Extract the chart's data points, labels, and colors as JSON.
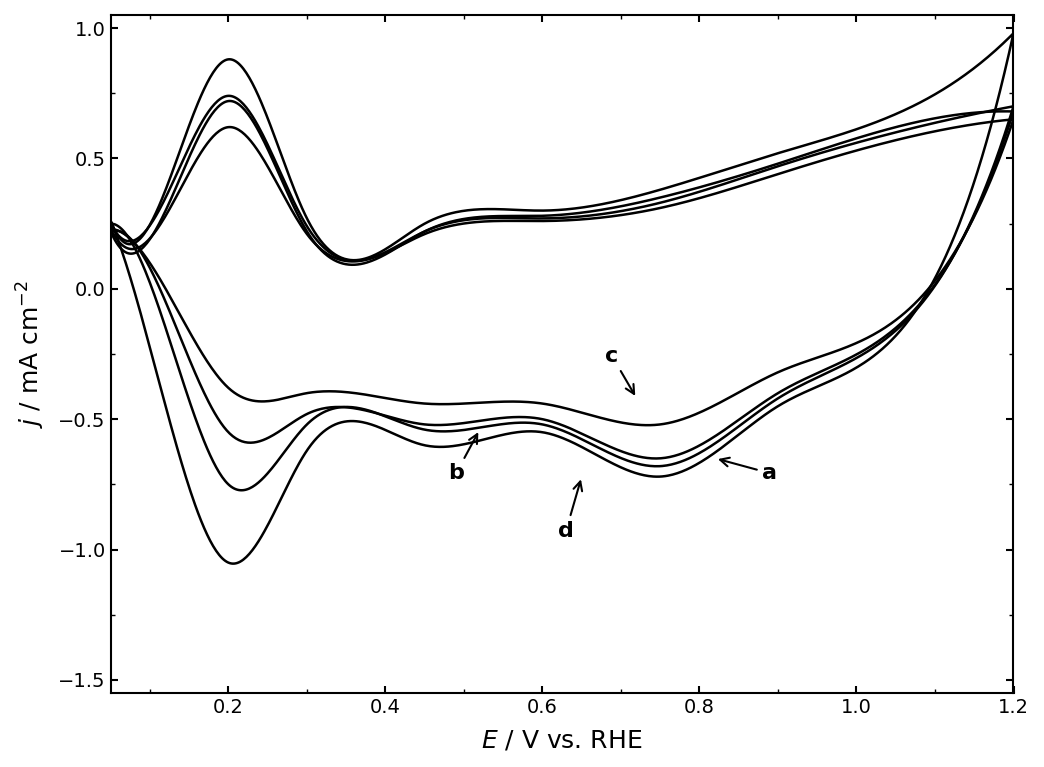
{
  "xlabel": "E / V vs. RHE",
  "ylabel": "j / mA cm⁻²",
  "xlim": [
    0.05,
    1.2
  ],
  "ylim": [
    -1.55,
    1.05
  ],
  "xticks": [
    0.2,
    0.4,
    0.6,
    0.8,
    1.0,
    1.2
  ],
  "yticks": [
    -1.5,
    -1.0,
    -0.5,
    0.0,
    0.5,
    1.0
  ],
  "line_color": "#000000",
  "background_color": "#ffffff",
  "label_a": "a",
  "label_b": "b",
  "label_c": "c",
  "label_d": "d"
}
